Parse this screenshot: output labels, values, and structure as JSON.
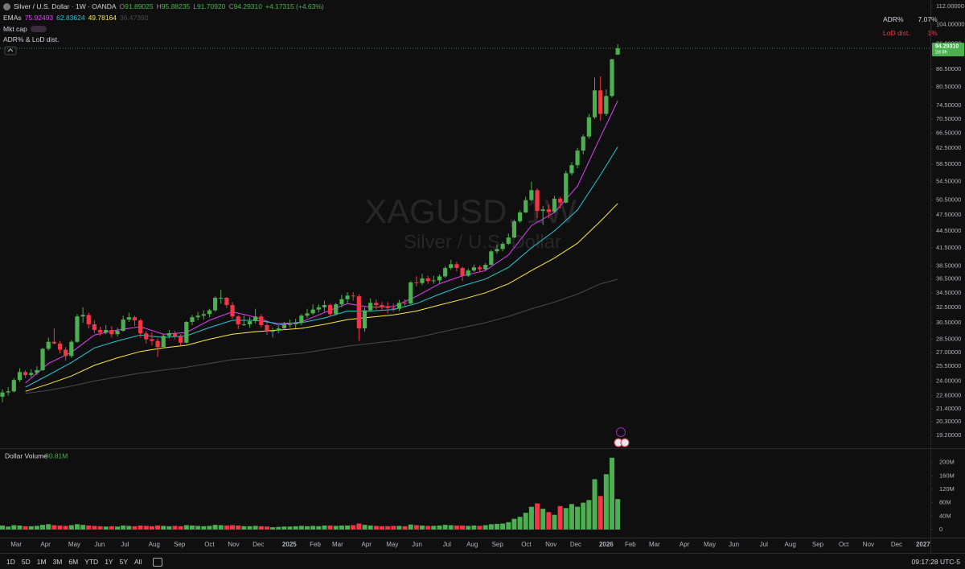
{
  "header": {
    "symbol": "Silver / U.S. Dollar · 1W · OANDA",
    "o": "O",
    "open": "91.89025",
    "h": "H",
    "high": "95.88235",
    "l": "L",
    "low": "91.70920",
    "c": "C",
    "close": "94.29310",
    "change": "+4.17315 (+4.63%)"
  },
  "indicators": {
    "ema_title": "EMAs",
    "ema_values": [
      "75.92493",
      "62.83624",
      "49.78164",
      "36.47390"
    ],
    "mkt_cap": "Mkt cap",
    "adr_title": "ADR% & LoD dist."
  },
  "adr_table": {
    "adr_label": "ADR%",
    "adr_value": "7.07%",
    "lod_label": "LoD dist.",
    "lod_value": "1%"
  },
  "watermark": {
    "symbol": "XAGUSD, 1W",
    "name": "Silver / U.S. Dollar"
  },
  "price_tag": {
    "label": "94.29310",
    "countdown": "2d 8h"
  },
  "chart_data": [
    {
      "type": "candlestick",
      "log_scale": true,
      "grid": false,
      "up_color": "#4caf50",
      "down_color": "#f23645",
      "ohlc": [
        [
          22.5,
          23.2,
          22.0,
          22.9
        ],
        [
          22.9,
          23.4,
          22.6,
          23.0
        ],
        [
          23.0,
          24.3,
          22.9,
          24.1
        ],
        [
          24.1,
          25.3,
          23.9,
          24.9
        ],
        [
          24.9,
          25.1,
          24.3,
          24.6
        ],
        [
          24.6,
          25.2,
          24.4,
          24.8
        ],
        [
          24.8,
          25.5,
          24.6,
          25.1
        ],
        [
          25.1,
          27.5,
          25.0,
          27.4
        ],
        [
          27.4,
          28.7,
          27.2,
          28.2
        ],
        [
          28.2,
          29.8,
          27.9,
          28.0
        ],
        [
          28.0,
          28.3,
          26.9,
          27.3
        ],
        [
          27.3,
          27.6,
          26.1,
          26.6
        ],
        [
          26.6,
          28.4,
          26.4,
          28.2
        ],
        [
          28.2,
          31.6,
          28.1,
          31.3
        ],
        [
          31.3,
          32.5,
          30.5,
          31.5
        ],
        [
          31.5,
          31.8,
          29.8,
          30.3
        ],
        [
          30.3,
          30.8,
          29.2,
          29.6
        ],
        [
          29.6,
          30.0,
          28.9,
          29.3
        ],
        [
          29.3,
          30.2,
          29.1,
          29.6
        ],
        [
          29.6,
          30.1,
          28.7,
          29.1
        ],
        [
          29.1,
          29.9,
          28.8,
          29.5
        ],
        [
          29.5,
          31.4,
          29.4,
          30.9
        ],
        [
          30.9,
          31.8,
          30.6,
          31.2
        ],
        [
          31.2,
          31.4,
          30.1,
          30.8
        ],
        [
          30.8,
          31.0,
          28.7,
          29.2
        ],
        [
          29.2,
          29.5,
          28.0,
          28.5
        ],
        [
          28.5,
          29.3,
          27.8,
          28.3
        ],
        [
          28.3,
          28.6,
          26.5,
          27.6
        ],
        [
          27.6,
          29.1,
          27.4,
          28.9
        ],
        [
          28.9,
          29.6,
          28.6,
          29.2
        ],
        [
          29.2,
          29.5,
          28.5,
          28.8
        ],
        [
          28.8,
          29.1,
          27.8,
          28.1
        ],
        [
          28.1,
          30.7,
          28.0,
          30.6
        ],
        [
          30.6,
          31.5,
          30.2,
          31.2
        ],
        [
          31.2,
          31.9,
          30.8,
          31.4
        ],
        [
          31.4,
          32.1,
          30.9,
          31.6
        ],
        [
          31.6,
          32.3,
          31.2,
          32.1
        ],
        [
          32.1,
          34.0,
          31.9,
          33.8
        ],
        [
          33.8,
          34.9,
          33.0,
          33.8
        ],
        [
          33.8,
          33.9,
          32.4,
          32.8
        ],
        [
          32.8,
          33.2,
          31.0,
          31.3
        ],
        [
          31.3,
          31.5,
          29.7,
          30.3
        ],
        [
          30.3,
          31.4,
          30.1,
          30.3
        ],
        [
          30.3,
          31.2,
          29.9,
          30.7
        ],
        [
          30.7,
          32.3,
          30.4,
          31.3
        ],
        [
          31.3,
          31.6,
          29.9,
          30.2
        ],
        [
          30.2,
          30.6,
          29.0,
          29.5
        ],
        [
          29.5,
          29.9,
          28.7,
          29.5
        ],
        [
          29.5,
          30.1,
          29.2,
          29.8
        ],
        [
          29.8,
          30.6,
          29.6,
          30.3
        ],
        [
          30.3,
          30.9,
          29.9,
          30.3
        ],
        [
          30.3,
          31.0,
          29.8,
          30.5
        ],
        [
          30.5,
          31.6,
          30.2,
          31.4
        ],
        [
          31.4,
          32.3,
          31.1,
          31.7
        ],
        [
          31.7,
          32.9,
          31.5,
          32.2
        ],
        [
          32.2,
          32.9,
          31.8,
          32.5
        ],
        [
          32.5,
          33.4,
          31.9,
          32.8
        ],
        [
          32.8,
          33.0,
          31.3,
          31.6
        ],
        [
          31.6,
          33.1,
          31.4,
          32.9
        ],
        [
          32.9,
          34.2,
          32.5,
          33.6
        ],
        [
          33.6,
          34.6,
          33.1,
          34.1
        ],
        [
          34.1,
          34.6,
          33.4,
          34.0
        ],
        [
          34.0,
          34.3,
          28.3,
          29.8
        ],
        [
          29.8,
          32.5,
          29.4,
          32.1
        ],
        [
          32.1,
          33.7,
          31.9,
          33.1
        ],
        [
          33.1,
          33.6,
          32.2,
          32.8
        ],
        [
          32.8,
          33.2,
          32.1,
          32.6
        ],
        [
          32.6,
          33.2,
          31.7,
          32.4
        ],
        [
          32.4,
          33.0,
          31.9,
          32.3
        ],
        [
          32.3,
          33.5,
          32.0,
          33.1
        ],
        [
          33.1,
          33.6,
          32.5,
          33.0
        ],
        [
          33.0,
          36.2,
          32.9,
          36.0
        ],
        [
          36.0,
          36.9,
          35.4,
          35.9
        ],
        [
          35.9,
          37.3,
          35.6,
          36.6
        ],
        [
          36.6,
          37.0,
          35.8,
          36.2
        ],
        [
          36.2,
          37.0,
          35.8,
          36.3
        ],
        [
          36.3,
          37.2,
          35.9,
          36.9
        ],
        [
          36.9,
          38.5,
          36.7,
          38.2
        ],
        [
          38.2,
          39.5,
          37.9,
          38.8
        ],
        [
          38.8,
          39.2,
          37.7,
          38.2
        ],
        [
          38.2,
          38.4,
          36.2,
          37.0
        ],
        [
          37.0,
          38.1,
          36.8,
          37.8
        ],
        [
          37.8,
          38.7,
          37.6,
          38.3
        ],
        [
          38.3,
          38.6,
          37.6,
          38.0
        ],
        [
          38.0,
          39.0,
          37.8,
          38.7
        ],
        [
          38.7,
          41.2,
          38.6,
          40.9
        ],
        [
          40.9,
          42.1,
          40.5,
          41.3
        ],
        [
          41.3,
          42.5,
          40.9,
          42.2
        ],
        [
          42.2,
          44.0,
          42.0,
          43.3
        ],
        [
          43.3,
          46.6,
          43.2,
          46.3
        ],
        [
          46.3,
          48.4,
          46.0,
          48.0
        ],
        [
          48.0,
          51.2,
          47.9,
          50.5
        ],
        [
          50.5,
          54.5,
          50.2,
          52.6
        ],
        [
          52.6,
          53.0,
          46.9,
          48.3
        ],
        [
          48.3,
          49.3,
          45.6,
          48.6
        ],
        [
          48.6,
          49.6,
          46.9,
          48.1
        ],
        [
          48.1,
          51.4,
          47.8,
          50.8
        ],
        [
          50.8,
          51.2,
          48.8,
          50.0
        ],
        [
          50.0,
          57.0,
          49.8,
          56.4
        ],
        [
          56.4,
          59.1,
          55.9,
          58.3
        ],
        [
          58.3,
          62.6,
          57.6,
          61.9
        ],
        [
          61.9,
          66.2,
          61.0,
          65.6
        ],
        [
          65.6,
          72.0,
          65.0,
          71.0
        ],
        [
          71.0,
          83.6,
          70.5,
          79.3
        ],
        [
          79.3,
          84.0,
          70.0,
          72.0
        ],
        [
          72.0,
          79.6,
          71.4,
          77.5
        ],
        [
          77.5,
          90.3,
          77.0,
          90.12
        ],
        [
          91.89025,
          95.88235,
          91.7092,
          94.2931
        ]
      ],
      "ema_x": [
        4,
        8,
        12,
        16,
        20,
        24,
        28,
        32,
        36,
        40,
        44,
        48,
        52,
        56,
        60,
        64,
        68,
        72,
        76,
        80,
        84,
        88,
        92,
        96,
        100,
        104,
        107
      ],
      "series": [
        {
          "color": "#e040fb",
          "values": [
            23.8,
            25.8,
            27.0,
            29.0,
            29.6,
            30.0,
            29.1,
            29.3,
            30.8,
            31.9,
            31.2,
            30.2,
            30.6,
            31.8,
            33.0,
            32.5,
            32.6,
            34.0,
            35.8,
            37.0,
            37.8,
            40.3,
            45.5,
            48.0,
            53.5,
            65.5,
            75.92493
          ]
        },
        {
          "color": "#26c6da",
          "values": [
            23.4,
            24.6,
            25.9,
            27.5,
            28.3,
            29.0,
            28.7,
            28.9,
            29.9,
            30.8,
            30.8,
            30.4,
            30.5,
            31.1,
            32.0,
            32.0,
            32.2,
            33.0,
            34.3,
            35.5,
            36.5,
            38.3,
            41.5,
            44.5,
            48.5,
            56.0,
            62.83624
          ]
        },
        {
          "color": "#ffeb3b",
          "values": [
            23.0,
            23.7,
            24.5,
            25.6,
            26.4,
            27.1,
            27.5,
            27.8,
            28.5,
            29.1,
            29.4,
            29.6,
            29.8,
            30.3,
            30.9,
            31.2,
            31.5,
            32.0,
            32.8,
            33.6,
            34.5,
            35.8,
            37.8,
            39.8,
            42.3,
            46.3,
            49.78164
          ]
        },
        {
          "color": "#4a4a4a",
          "values": [
            22.8,
            23.1,
            23.5,
            24.0,
            24.4,
            24.8,
            25.1,
            25.4,
            25.8,
            26.2,
            26.4,
            26.7,
            26.9,
            27.3,
            27.7,
            28.0,
            28.3,
            28.7,
            29.3,
            29.9,
            30.5,
            31.3,
            32.3,
            33.2,
            34.3,
            35.8,
            36.4739
          ]
        }
      ],
      "xlim": [
        -0.42,
        161.1
      ],
      "xticks": [
        {
          "value": 2.4,
          "label": "Mar"
        },
        {
          "value": 7.5,
          "label": "Apr"
        },
        {
          "value": 12.5,
          "label": "May"
        },
        {
          "value": 16.9,
          "label": "Jun"
        },
        {
          "value": 21.3,
          "label": "Jul"
        },
        {
          "value": 26.4,
          "label": "Aug"
        },
        {
          "value": 30.8,
          "label": "Sep"
        },
        {
          "value": 36.0,
          "label": "Oct"
        },
        {
          "value": 40.2,
          "label": "Nov"
        },
        {
          "value": 44.5,
          "label": "Dec"
        },
        {
          "value": 49.9,
          "label": "2025"
        },
        {
          "value": 54.4,
          "label": "Feb"
        },
        {
          "value": 58.3,
          "label": "Mar"
        },
        {
          "value": 63.3,
          "label": "Apr"
        },
        {
          "value": 67.8,
          "label": "May"
        },
        {
          "value": 72.1,
          "label": "Jun"
        },
        {
          "value": 77.3,
          "label": "Jul"
        },
        {
          "value": 81.7,
          "label": "Aug"
        },
        {
          "value": 86.1,
          "label": "Sep"
        },
        {
          "value": 91.1,
          "label": "Oct"
        },
        {
          "value": 95.4,
          "label": "Nov"
        },
        {
          "value": 99.7,
          "label": "Dec"
        },
        {
          "value": 105.0,
          "label": "2026"
        },
        {
          "value": 109.2,
          "label": "Feb"
        },
        {
          "value": 113.4,
          "label": "Mar"
        },
        {
          "value": 118.6,
          "label": "Apr"
        },
        {
          "value": 123.0,
          "label": "May"
        },
        {
          "value": 127.2,
          "label": "Jun"
        },
        {
          "value": 132.4,
          "label": "Jul"
        },
        {
          "value": 137.0,
          "label": "Aug"
        },
        {
          "value": 141.8,
          "label": "Sep"
        },
        {
          "value": 146.3,
          "label": "Oct"
        },
        {
          "value": 150.6,
          "label": "Nov"
        },
        {
          "value": 155.5,
          "label": "Dec"
        },
        {
          "value": 160.1,
          "label": "2027"
        }
      ],
      "ylim": [
        18.2,
        115
      ],
      "yticks": [
        {
          "value": 112,
          "label": "112.00000"
        },
        {
          "value": 104,
          "label": "104.00000"
        },
        {
          "value": 96,
          "label": "96.00000"
        },
        {
          "value": 86.5,
          "label": "86.50000"
        },
        {
          "value": 80.5,
          "label": "80.50000"
        },
        {
          "value": 74.5,
          "label": "74.50000"
        },
        {
          "value": 70.5,
          "label": "70.50000"
        },
        {
          "value": 66.5,
          "label": "66.50000"
        },
        {
          "value": 62.5,
          "label": "62.50000"
        },
        {
          "value": 58.5,
          "label": "58.50000"
        },
        {
          "value": 54.5,
          "label": "54.50000"
        },
        {
          "value": 50.5,
          "label": "50.50000"
        },
        {
          "value": 47.5,
          "label": "47.50000"
        },
        {
          "value": 44.5,
          "label": "44.50000"
        },
        {
          "value": 41.5,
          "label": "41.50000"
        },
        {
          "value": 38.5,
          "label": "38.50000"
        },
        {
          "value": 36.5,
          "label": "36.50000"
        },
        {
          "value": 34.5,
          "label": "34.50000"
        },
        {
          "value": 32.5,
          "label": "32.50000"
        },
        {
          "value": 30.5,
          "label": "30.50000"
        },
        {
          "value": 28.5,
          "label": "28.50000"
        },
        {
          "value": 27,
          "label": "27.00000"
        },
        {
          "value": 25.5,
          "label": "25.50000"
        },
        {
          "value": 24,
          "label": "24.00000"
        },
        {
          "value": 22.6,
          "label": "22.60000"
        },
        {
          "value": 21.4,
          "label": "21.40000"
        },
        {
          "value": 20.3,
          "label": "20.30000"
        },
        {
          "value": 19.2,
          "label": "19.20000"
        }
      ]
    },
    {
      "type": "bar",
      "title": "Dollar Volume",
      "legend_value": "90.81M",
      "values": [
        12,
        9,
        13,
        12,
        10,
        10,
        11,
        14,
        16,
        13,
        12,
        11,
        13,
        16,
        14,
        12,
        11,
        10,
        9,
        10,
        9,
        12,
        11,
        10,
        12,
        11,
        10,
        12,
        11,
        10,
        11,
        10,
        13,
        12,
        11,
        10,
        11,
        14,
        13,
        12,
        13,
        12,
        10,
        10,
        11,
        10,
        9,
        7,
        8,
        9,
        9,
        10,
        11,
        10,
        11,
        10,
        12,
        12,
        11,
        12,
        12,
        13,
        18,
        14,
        12,
        11,
        10,
        10,
        11,
        11,
        10,
        15,
        13,
        12,
        11,
        11,
        12,
        14,
        13,
        12,
        12,
        11,
        12,
        11,
        13,
        16,
        17,
        18,
        22,
        32,
        38,
        50,
        68,
        78,
        62,
        52,
        44,
        70,
        64,
        76,
        68,
        80,
        88,
        150,
        100,
        165,
        214,
        90.81
      ],
      "ylim": [
        0,
        235
      ],
      "yticks": [
        0,
        {
          "value": 40,
          "label": "40M"
        },
        {
          "value": 80,
          "label": "80M"
        },
        {
          "value": 120,
          "label": "120M"
        },
        {
          "value": 160,
          "label": "160M"
        },
        {
          "value": 200,
          "label": "200M"
        }
      ]
    }
  ],
  "toolbar": {
    "ranges": [
      "1D",
      "5D",
      "1M",
      "3M",
      "6M",
      "YTD",
      "1Y",
      "5Y",
      "All"
    ],
    "clock": "09:17:28 UTC-5"
  }
}
